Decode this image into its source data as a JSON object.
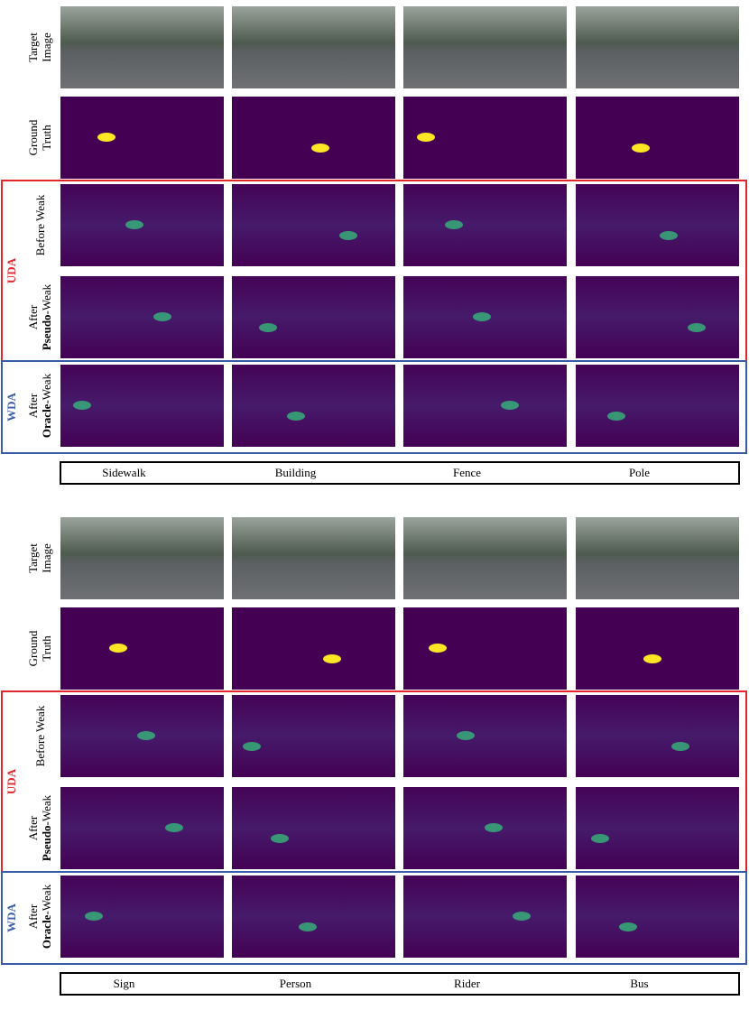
{
  "panels": [
    {
      "rows": [
        {
          "lines": [
            "Target",
            "Image"
          ]
        },
        {
          "lines": [
            "Ground",
            "Truth"
          ]
        },
        {
          "lines": [
            "Before Weak"
          ]
        },
        {
          "lines": [
            "After"
          ],
          "bold": "Pseudo",
          "rest": "-Weak"
        },
        {
          "lines": [
            "After"
          ],
          "bold": "Oracle",
          "rest": "-Weak"
        }
      ],
      "groups": [
        "UDA",
        "WDA"
      ],
      "classes": [
        "Sidewalk",
        "Building",
        "Fence",
        "Pole"
      ]
    },
    {
      "rows": [
        {
          "lines": [
            "Target",
            "Image"
          ]
        },
        {
          "lines": [
            "Ground",
            "Truth"
          ]
        },
        {
          "lines": [
            "Before Weak"
          ]
        },
        {
          "lines": [
            "After"
          ],
          "bold": "Pseudo",
          "rest": "-Weak"
        },
        {
          "lines": [
            "After"
          ],
          "bold": "Oracle",
          "rest": "-Weak"
        }
      ],
      "groups": [
        "UDA",
        "WDA"
      ],
      "classes": [
        "Sign",
        "Person",
        "Rider",
        "Bus"
      ]
    }
  ]
}
